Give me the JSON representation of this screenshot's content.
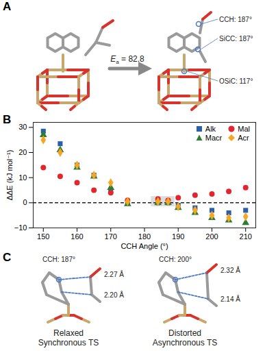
{
  "chart_data": {
    "type": "scatter",
    "panel_label": "B",
    "x_label": "CCH Angle (°)",
    "y_label": "ΔΔE (kJ mol⁻¹)",
    "x": [
      150,
      155,
      160,
      165,
      170,
      175,
      184,
      187,
      190,
      195,
      200,
      205,
      210
    ],
    "series": [
      {
        "name": "Alk",
        "color": "#2b5fab",
        "marker": "square",
        "values": [
          28.5,
          23.5,
          15,
          11,
          5,
          0,
          0,
          0,
          -1,
          -2,
          -3,
          -4,
          -3
        ]
      },
      {
        "name": "Mal",
        "color": "#e3262d",
        "marker": "circle",
        "values": [
          14,
          10.5,
          8,
          5,
          4,
          1,
          1.5,
          1,
          2,
          3,
          3.5,
          4.5,
          6
        ]
      },
      {
        "name": "Macr",
        "color": "#2e7d32",
        "marker": "triangle",
        "values": [
          27,
          21,
          14,
          10.5,
          6,
          -0.5,
          0,
          0,
          -2,
          -4,
          -6,
          -7,
          -8
        ]
      },
      {
        "name": "Acr",
        "color": "#f5a623",
        "marker": "diamond",
        "values": [
          25,
          20,
          15,
          11,
          8,
          0.5,
          0.5,
          0.5,
          -1.5,
          -3,
          -5,
          -6,
          -5.5
        ]
      }
    ],
    "xlim": [
      147,
      213
    ],
    "xticks": [
      150,
      160,
      170,
      180,
      190,
      200,
      210
    ],
    "ylim": [
      -10,
      32
    ],
    "yticks": [
      -10,
      0,
      10,
      20,
      30
    ],
    "hline": 0,
    "highlight": {
      "x": [
        182,
        189
      ],
      "y": [
        -1.5,
        2.5
      ]
    },
    "grid": false,
    "legend": "top-right"
  },
  "panel_a": {
    "panel_label": "A",
    "energy_label": {
      "symbol": "E",
      "subscript": "a",
      "text": " = 82.8"
    },
    "angle_labels": [
      "CCH: 187°",
      "SiCC: 187°",
      "OSiC: 117°"
    ]
  },
  "panel_c": {
    "panel_label": "C",
    "structures": [
      {
        "angle_label": "CCH: 187°",
        "distances": [
          "2.27 Å",
          "2.20 Å"
        ],
        "caption": [
          "Relaxed",
          "Synchronous TS"
        ]
      },
      {
        "angle_label": "CCH: 200°",
        "distances": [
          "2.32 Å",
          "2.14 Å"
        ],
        "caption": [
          "Distorted",
          "Asynchronous TS"
        ]
      }
    ]
  }
}
